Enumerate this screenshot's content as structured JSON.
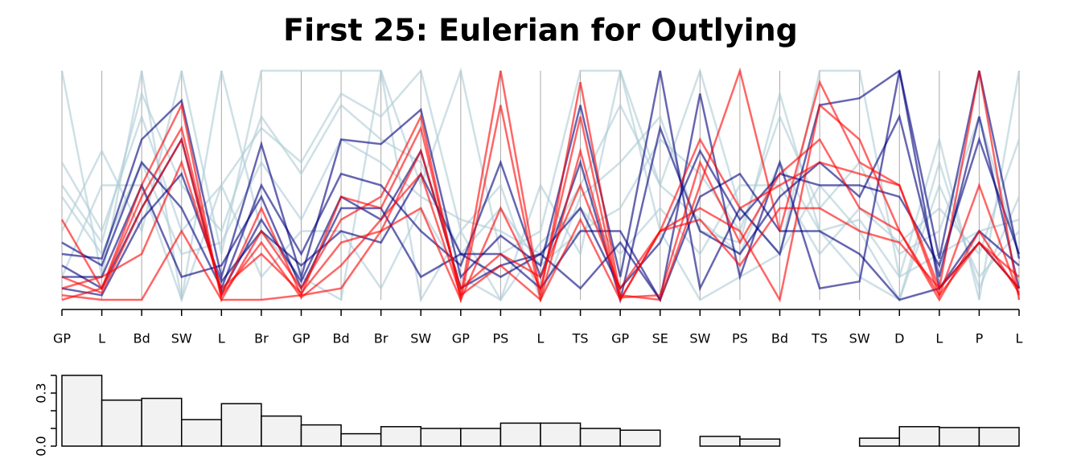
{
  "chart_data": [
    {
      "type": "parallel",
      "title": "First 25: Eulerian for Outlying",
      "categories": [
        "GP",
        "L",
        "Bd",
        "SW",
        "L",
        "Br",
        "GP",
        "Bd",
        "Br",
        "SW",
        "GP",
        "PS",
        "L",
        "TS",
        "GP",
        "SE",
        "SW",
        "PS",
        "Bd",
        "TS",
        "SW",
        "D",
        "L",
        "P",
        "L"
      ],
      "ylim": [
        0,
        1
      ],
      "series": [
        {
          "color": "#aecbd6",
          "values": [
            1.0,
            0.1,
            1.0,
            0.0,
            1.0,
            0.3,
            0.1,
            0.0,
            1.0,
            0.0,
            0.3,
            0.0,
            0.5,
            0.2,
            1.0,
            0.3,
            0.0,
            0.1,
            0.2,
            0.5,
            0.3,
            0.0,
            0.5,
            0.1,
            0.3
          ]
        },
        {
          "color": "#aecbd6",
          "values": [
            0.6,
            0.3,
            0.8,
            0.3,
            0.5,
            0.75,
            0.6,
            0.9,
            0.8,
            1.0,
            0.3,
            0.5,
            0.0,
            0.45,
            0.6,
            0.8,
            0.3,
            0.25,
            0.9,
            0.3,
            0.1,
            0.0,
            0.6,
            0.05,
            0.45
          ]
        },
        {
          "color": "#aecbd6",
          "values": [
            0.3,
            0.65,
            0.3,
            1.0,
            0.2,
            1.0,
            1.0,
            1.0,
            1.0,
            0.5,
            1.0,
            0.2,
            0.3,
            1.0,
            1.0,
            0.5,
            1.0,
            0.4,
            0.2,
            1.0,
            1.0,
            0.1,
            0.7,
            0.0,
            1.0
          ]
        },
        {
          "color": "#aecbd6",
          "values": [
            0.5,
            0.25,
            0.9,
            0.5,
            0.3,
            0.8,
            0.55,
            0.85,
            0.7,
            0.6,
            0.2,
            0.4,
            0.15,
            0.3,
            0.4,
            0.7,
            0.55,
            0.3,
            0.8,
            0.4,
            0.6,
            0.2,
            0.3,
            0.8,
            0.2
          ]
        },
        {
          "color": "#aecbd6",
          "values": [
            0.1,
            0.5,
            0.5,
            0.0,
            0.5,
            0.1,
            0.3,
            0.3,
            0.05,
            0.4,
            0.1,
            0.0,
            0.25,
            0.4,
            0.2,
            0.4,
            0.2,
            0.5,
            0.5,
            0.2,
            0.4,
            0.25,
            0.4,
            0.2,
            0.7
          ]
        },
        {
          "color": "#aecbd6",
          "values": [
            0.45,
            0.2,
            0.6,
            0.2,
            0.25,
            0.6,
            0.35,
            0.7,
            0.6,
            0.45,
            0.35,
            0.3,
            0.2,
            0.5,
            0.85,
            0.5,
            0.35,
            0.2,
            0.6,
            0.3,
            0.35,
            0.1,
            0.2,
            0.3,
            0.35
          ]
        },
        {
          "color": "#00007f",
          "values": [
            0.2,
            0.18,
            0.7,
            0.87,
            0.1,
            0.68,
            0.1,
            0.7,
            0.68,
            0.83,
            0.1,
            0.28,
            0.15,
            0.85,
            0.1,
            1.0,
            0.05,
            0.4,
            0.2,
            0.85,
            0.88,
            1.0,
            0.18,
            1.0,
            0.18
          ]
        },
        {
          "color": "#00007f",
          "values": [
            0.1,
            0.1,
            0.5,
            0.1,
            0.15,
            0.45,
            0.05,
            0.4,
            0.4,
            0.1,
            0.2,
            0.1,
            0.2,
            0.05,
            0.25,
            0.0,
            0.9,
            0.1,
            0.6,
            0.05,
            0.08,
            1.0,
            0.05,
            0.25,
            0.05
          ]
        },
        {
          "color": "#00007f",
          "values": [
            0.25,
            0.15,
            0.6,
            0.4,
            0.05,
            0.5,
            0.2,
            0.55,
            0.5,
            0.3,
            0.15,
            0.6,
            0.1,
            0.6,
            0.0,
            0.75,
            0.3,
            0.2,
            0.45,
            0.6,
            0.45,
            0.8,
            0.1,
            0.8,
            0.05
          ]
        },
        {
          "color": "#00007f",
          "values": [
            0.05,
            0.02,
            0.35,
            0.55,
            0.08,
            0.3,
            0.15,
            0.3,
            0.25,
            0.55,
            0.2,
            0.2,
            0.05,
            0.3,
            0.3,
            0.0,
            0.45,
            0.55,
            0.3,
            0.3,
            0.2,
            0.0,
            0.05,
            0.3,
            0.15
          ]
        },
        {
          "color": "#00007f",
          "values": [
            0.15,
            0.05,
            0.4,
            0.7,
            0.03,
            0.35,
            0.08,
            0.45,
            0.35,
            0.65,
            0.05,
            0.15,
            0.2,
            0.4,
            0.05,
            0.25,
            0.65,
            0.35,
            0.55,
            0.5,
            0.5,
            0.45,
            0.15,
            0.7,
            0.2
          ]
        },
        {
          "color": "#ff0000",
          "values": [
            0.0,
            0.05,
            0.45,
            0.75,
            0.02,
            0.4,
            0.02,
            0.45,
            0.4,
            0.75,
            0.02,
            1.0,
            0.02,
            0.95,
            0.02,
            0.0,
            0.5,
            1.0,
            0.3,
            0.95,
            0.6,
            0.5,
            0.02,
            0.5,
            0.02
          ]
        },
        {
          "color": "#ff0000",
          "values": [
            0.35,
            0.05,
            0.5,
            0.85,
            0.0,
            0.3,
            0.05,
            0.35,
            0.45,
            0.8,
            0.0,
            0.4,
            0.05,
            0.8,
            0.0,
            0.3,
            0.7,
            0.4,
            0.5,
            0.6,
            0.55,
            0.5,
            0.05,
            1.0,
            0.0
          ]
        },
        {
          "color": "#ff0000",
          "values": [
            0.05,
            0.1,
            0.2,
            0.6,
            0.05,
            0.2,
            0.03,
            0.25,
            0.3,
            0.65,
            0.05,
            0.2,
            0.1,
            0.5,
            0.05,
            0.3,
            0.4,
            0.3,
            0.0,
            0.85,
            0.7,
            0.3,
            0.02,
            0.25,
            0.05
          ]
        },
        {
          "color": "#ff0000",
          "values": [
            0.1,
            0.03,
            0.4,
            0.7,
            0.02,
            0.25,
            0.01,
            0.15,
            0.35,
            0.55,
            0.02,
            0.15,
            0.0,
            0.65,
            0.01,
            0.02,
            0.6,
            0.25,
            0.55,
            0.7,
            0.4,
            0.3,
            0.0,
            0.3,
            0.03
          ]
        },
        {
          "color": "#ff0000",
          "values": [
            0.02,
            0.0,
            0.0,
            0.3,
            0.0,
            0.0,
            0.02,
            0.05,
            0.3,
            0.4,
            0.0,
            0.85,
            0.0,
            0.35,
            0.0,
            0.3,
            0.35,
            0.15,
            0.4,
            0.4,
            0.3,
            0.25,
            0.05,
            0.25,
            0.1
          ]
        }
      ]
    },
    {
      "type": "bar",
      "color": "#f2f2f2",
      "values": [
        0.4,
        0.26,
        0.27,
        0.15,
        0.24,
        0.17,
        0.12,
        0.07,
        0.11,
        0.1,
        0.1,
        0.13,
        0.13,
        0.1,
        0.09,
        0,
        0.055,
        0.04,
        0,
        0,
        0.045,
        0.11,
        0.105,
        0.105
      ],
      "ylim": [
        0,
        0.4
      ],
      "yticks": [
        {
          "value": 0,
          "label": "0.0"
        },
        {
          "value": 0.3,
          "label": "0.3"
        }
      ],
      "yminor_ticks": [
        0.1,
        0.2,
        0.4
      ]
    }
  ]
}
